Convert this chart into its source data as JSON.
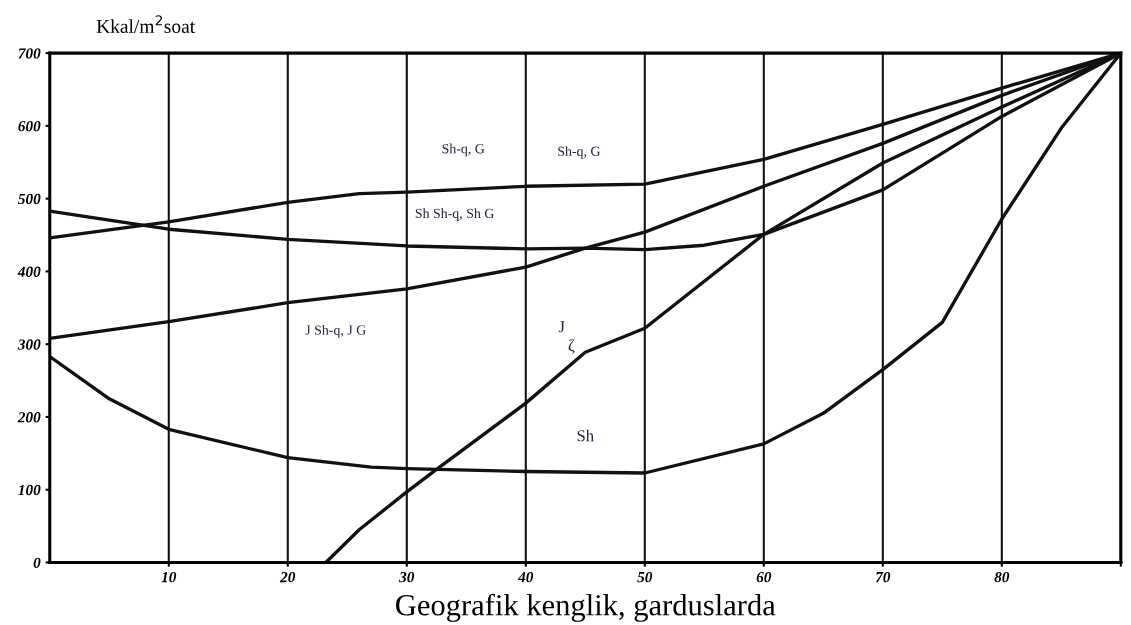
{
  "chart_data": {
    "type": "line",
    "ylabel": "Kkal/m$^{2}$soat",
    "xlabel": "Geografik kenglik, garduslarda",
    "xlim": [
      0,
      90
    ],
    "ylim": [
      0,
      700
    ],
    "xticks": [
      10,
      20,
      30,
      40,
      50,
      60,
      70,
      80,
      {
        "value": 90,
        "label": null
      }
    ],
    "yticks": [
      0,
      100,
      200,
      300,
      400,
      500,
      600,
      700
    ],
    "grid": "x",
    "marker": "none",
    "line_style": "solid",
    "series": [
      {
        "color": "#111111",
        "x": [
          0,
          10,
          20,
          26,
          30,
          40,
          50,
          60,
          70,
          80,
          90
        ],
        "values": [
          446,
          468,
          495,
          507,
          509,
          517,
          520,
          554,
          602,
          652,
          700
        ]
      },
      {
        "color": "#111111",
        "x": [
          0,
          10,
          20,
          30,
          40,
          45,
          50,
          55,
          60,
          70,
          80,
          90
        ],
        "values": [
          483,
          458,
          444,
          435,
          431,
          432,
          430,
          436,
          451,
          512,
          613,
          700
        ]
      },
      {
        "color": "#111111",
        "x": [
          0,
          10,
          20,
          30,
          40,
          45,
          50,
          60,
          70,
          80,
          90
        ],
        "values": [
          308,
          331,
          357,
          376,
          406,
          432,
          454,
          517,
          576,
          642,
          700
        ]
      },
      {
        "color": "#111111",
        "x": [
          23.2,
          26,
          30,
          32.5,
          40,
          45,
          50,
          60,
          70,
          80,
          90
        ],
        "values": [
          0,
          45,
          97,
          128,
          219,
          289,
          322,
          451,
          549,
          626,
          700
        ]
      },
      {
        "color": "#111111",
        "x": [
          0,
          5,
          10,
          20,
          27,
          30,
          40,
          50,
          60,
          65,
          70,
          75,
          80,
          85,
          90
        ],
        "values": [
          283,
          225,
          183,
          144,
          131,
          129,
          125,
          123,
          163,
          205,
          265,
          330,
          472,
          597,
          700
        ]
      }
    ],
    "annotations": [
      "Sh-q, G",
      "Sh-q, G",
      "Sh Sh-q, Sh G",
      "J Sh-q, J G",
      "J",
      "ζ",
      "Sh"
    ]
  }
}
